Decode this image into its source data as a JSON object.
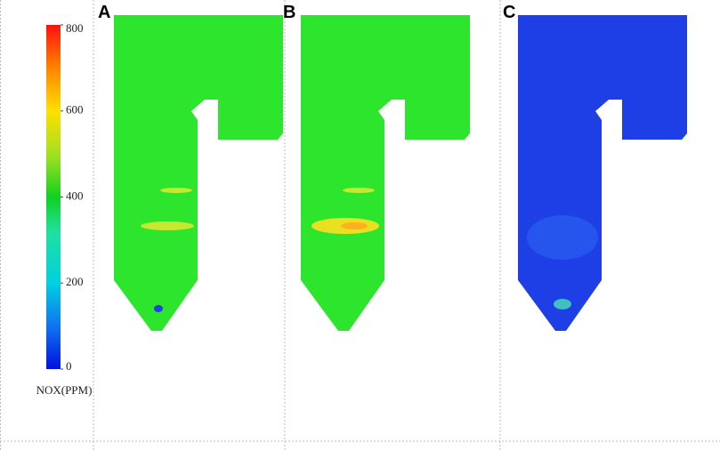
{
  "colorbar": {
    "title": "NOX(PPM)",
    "lim": [
      0,
      800
    ],
    "ticks": [
      0,
      200,
      400,
      600,
      800
    ]
  },
  "panels": [
    {
      "label": "A"
    },
    {
      "label": "B"
    },
    {
      "label": "C"
    }
  ]
}
